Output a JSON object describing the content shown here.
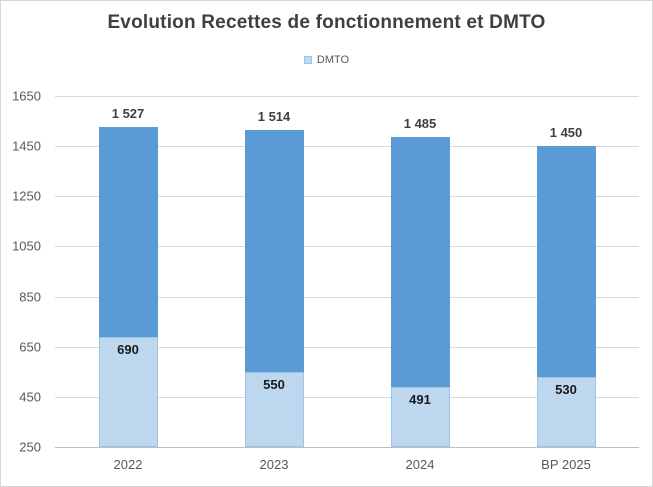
{
  "chart_data": {
    "type": "bar",
    "stacked": true,
    "title": "Evolution Recettes de fonctionnement et DMTO",
    "legend": {
      "items": [
        "DMTO"
      ],
      "position": "top"
    },
    "categories": [
      "2022",
      "2023",
      "2024",
      "BP 2025"
    ],
    "series": [
      {
        "name": "DMTO",
        "values": [
          690,
          550,
          491,
          530
        ]
      }
    ],
    "totals": [
      1527,
      1514,
      1485,
      1450
    ],
    "total_labels": [
      "1 527",
      "1 514",
      "1 485",
      "1 450"
    ],
    "dmto_labels": [
      "690",
      "550",
      "491",
      "530"
    ],
    "ylim": [
      250,
      1650
    ],
    "yticks": [
      250,
      450,
      650,
      850,
      1050,
      1250,
      1450,
      1650
    ],
    "grid": true,
    "xlabel": "",
    "ylabel": ""
  },
  "colors": {
    "bar_top": "#5b9bd5",
    "bar_dmto_fill": "#bdd7ee",
    "bar_dmto_border": "#9dc3e6",
    "gridline": "#d9d9d9",
    "baseline": "#bfbfbf",
    "title_text": "#3f3f3f",
    "axis_text": "#595959",
    "dmto_label_text": "#1a1a1a",
    "canvas_border": "#d6d6d6"
  }
}
